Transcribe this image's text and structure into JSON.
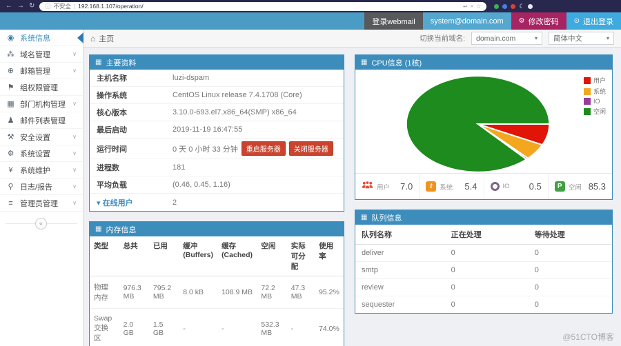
{
  "browser": {
    "security_label": "不安全",
    "url": "192.168.1.107/operation/"
  },
  "header": {
    "webmail": "登录webmail",
    "account": "system@domain.com",
    "change_password": "修改密码",
    "logout": "退出登录"
  },
  "toolbar": {
    "home": "主页",
    "domain_label": "切换当前域名:",
    "domain": "domain.com",
    "language": "简体中文"
  },
  "sidebar": {
    "items": [
      {
        "label": "系统信息",
        "icon": "dashboard",
        "active": true,
        "chevron": false
      },
      {
        "label": "域名管理",
        "icon": "sitemap",
        "active": false,
        "chevron": true
      },
      {
        "label": "邮箱管理",
        "icon": "globe",
        "active": false,
        "chevron": true
      },
      {
        "label": "组权限管理",
        "icon": "tags",
        "active": false,
        "chevron": false
      },
      {
        "label": "部门机构管理",
        "icon": "chart",
        "active": false,
        "chevron": true
      },
      {
        "label": "邮件列表管理",
        "icon": "user",
        "active": false,
        "chevron": false
      },
      {
        "label": "安全设置",
        "icon": "gavel",
        "active": false,
        "chevron": true
      },
      {
        "label": "系统设置",
        "icon": "gear",
        "active": false,
        "chevron": true
      },
      {
        "label": "系统维护",
        "icon": "wrench",
        "active": false,
        "chevron": true
      },
      {
        "label": "日志/报告",
        "icon": "bulb",
        "active": false,
        "chevron": true
      },
      {
        "label": "管理员管理",
        "icon": "list",
        "active": false,
        "chevron": true
      }
    ]
  },
  "main_info": {
    "title": "主要资料",
    "rows": [
      {
        "label": "主机名称",
        "value": "luzi-dspam"
      },
      {
        "label": "操作系统",
        "value": "CentOS Linux release 7.4.1708 (Core)"
      },
      {
        "label": "核心版本",
        "value": "3.10.0-693.el7.x86_64(SMP) x86_64"
      },
      {
        "label": "最后启动",
        "value": "2019-11-19 16:47:55"
      },
      {
        "label": "运行时间",
        "value": "0 天 0 小时 33 分钟",
        "buttons": [
          "重启服务器",
          "关闭服务器"
        ]
      },
      {
        "label": "进程数",
        "value": "181"
      },
      {
        "label": "平均负载",
        "value": "(0.46, 0.45, 1.16)"
      },
      {
        "label": "在线用户",
        "value": "2",
        "link": true
      }
    ]
  },
  "cpu_panel": {
    "title": "CPU信息 (1核)",
    "stats": [
      {
        "icon": "users-icon",
        "label": "用户",
        "value": "7.0"
      },
      {
        "icon": "bird-badge-icon",
        "label": "系统",
        "value": "5.4"
      },
      {
        "icon": "io-ring-icon",
        "label": "IO",
        "value": "0.5"
      },
      {
        "icon": "p-badge-icon",
        "label": "空闲",
        "value": "85.3"
      }
    ]
  },
  "chart_data": {
    "type": "pie",
    "title": "CPU信息 (1核)",
    "labels": [
      "用户",
      "系统",
      "IO",
      "空闲"
    ],
    "values": [
      7.0,
      5.4,
      0.5,
      85.3
    ],
    "colors": [
      "#e01507",
      "#f2a71e",
      "#9a3d9a",
      "#1e8b1e"
    ],
    "unit": "percent",
    "legend_position": "top-right",
    "start_angle_deg": 0,
    "direction": "clockwise"
  },
  "memory": {
    "title": "内存信息",
    "headers": [
      "类型",
      "总共",
      "已用",
      "缓冲 (Buffers)",
      "缓存 (Cached)",
      "空闲",
      "实际可分配",
      "使用率"
    ],
    "rows": [
      [
        "物理内存",
        "976.3 MB",
        "795.2 MB",
        "8.0 kB",
        "108.9 MB",
        "72.2 MB",
        "47.3 MB",
        "95.2%"
      ],
      [
        "Swap交换区",
        "2.0 GB",
        "1.5 GB",
        "-",
        "-",
        "532.3 MB",
        "-",
        "74.0%"
      ]
    ]
  },
  "queue": {
    "title": "队列信息",
    "headers": [
      "队列名称",
      "正在处理",
      "等待处理"
    ],
    "rows": [
      [
        "deliver",
        "0",
        "0"
      ],
      [
        "smtp",
        "0",
        "0"
      ],
      [
        "review",
        "0",
        "0"
      ],
      [
        "sequester",
        "0",
        "0"
      ]
    ]
  },
  "watermark": {
    "text": "@51CTO博客"
  }
}
